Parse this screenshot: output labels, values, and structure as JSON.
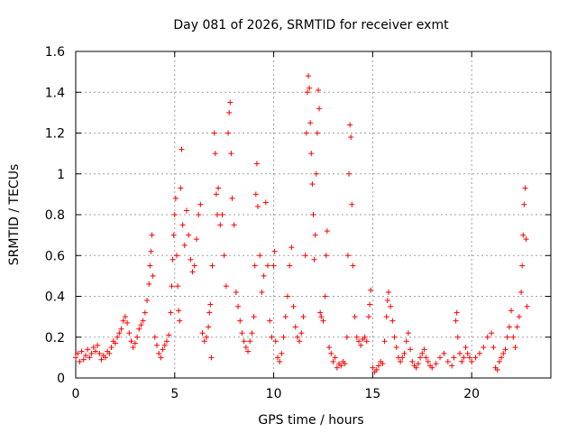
{
  "chart_data": {
    "type": "scatter",
    "title": "Day 081 of 2026, SRMTID for receiver exmt",
    "xlabel": "GPS time / hours",
    "ylabel": "SRMTID / TECUs",
    "xlim": [
      0,
      24
    ],
    "ylim": [
      0,
      1.6
    ],
    "xticks": [
      0,
      5,
      10,
      15,
      20
    ],
    "xtick_labels": [
      "0",
      "5",
      "10",
      "15",
      "20"
    ],
    "yticks": [
      0,
      0.2,
      0.4,
      0.6,
      0.8,
      1.0,
      1.2,
      1.4,
      1.6
    ],
    "ytick_labels": [
      "0",
      "0.2",
      "0.4",
      "0.6",
      "0.8",
      "1",
      "1.2",
      "1.4",
      "1.6"
    ],
    "grid": true,
    "marker": "+",
    "marker_color": "#ff0000",
    "series": [
      {
        "name": "SRMTID",
        "points": [
          [
            0.0,
            0.1
          ],
          [
            0.1,
            0.12
          ],
          [
            0.2,
            0.08
          ],
          [
            0.3,
            0.13
          ],
          [
            0.4,
            0.09
          ],
          [
            0.5,
            0.11
          ],
          [
            0.6,
            0.14
          ],
          [
            0.7,
            0.1
          ],
          [
            0.8,
            0.12
          ],
          [
            0.9,
            0.15
          ],
          [
            1.0,
            0.13
          ],
          [
            1.1,
            0.16
          ],
          [
            1.2,
            0.12
          ],
          [
            1.3,
            0.09
          ],
          [
            1.4,
            0.11
          ],
          [
            1.5,
            0.1
          ],
          [
            1.6,
            0.13
          ],
          [
            1.7,
            0.12
          ],
          [
            1.8,
            0.15
          ],
          [
            1.9,
            0.18
          ],
          [
            2.0,
            0.17
          ],
          [
            2.1,
            0.2
          ],
          [
            2.2,
            0.22
          ],
          [
            2.3,
            0.24
          ],
          [
            2.4,
            0.28
          ],
          [
            2.5,
            0.3
          ],
          [
            2.6,
            0.27
          ],
          [
            2.7,
            0.22
          ],
          [
            2.8,
            0.18
          ],
          [
            2.9,
            0.15
          ],
          [
            3.0,
            0.17
          ],
          [
            3.1,
            0.2
          ],
          [
            3.2,
            0.24
          ],
          [
            3.3,
            0.26
          ],
          [
            3.4,
            0.28
          ],
          [
            3.5,
            0.32
          ],
          [
            3.6,
            0.38
          ],
          [
            3.7,
            0.46
          ],
          [
            3.75,
            0.55
          ],
          [
            3.8,
            0.62
          ],
          [
            3.85,
            0.7
          ],
          [
            3.9,
            0.5
          ],
          [
            4.0,
            0.2
          ],
          [
            4.1,
            0.16
          ],
          [
            4.2,
            0.12
          ],
          [
            4.3,
            0.1
          ],
          [
            4.4,
            0.14
          ],
          [
            4.5,
            0.16
          ],
          [
            4.6,
            0.18
          ],
          [
            4.7,
            0.21
          ],
          [
            4.8,
            0.32
          ],
          [
            4.85,
            0.45
          ],
          [
            4.9,
            0.58
          ],
          [
            4.95,
            0.7
          ],
          [
            5.0,
            0.8
          ],
          [
            5.05,
            0.88
          ],
          [
            5.1,
            0.6
          ],
          [
            5.15,
            0.45
          ],
          [
            5.2,
            0.33
          ],
          [
            5.25,
            0.28
          ],
          [
            5.3,
            0.93
          ],
          [
            5.35,
            1.12
          ],
          [
            5.4,
            0.75
          ],
          [
            5.5,
            0.65
          ],
          [
            5.6,
            0.82
          ],
          [
            5.7,
            0.7
          ],
          [
            5.8,
            0.58
          ],
          [
            5.9,
            0.52
          ],
          [
            6.0,
            0.55
          ],
          [
            6.1,
            0.68
          ],
          [
            6.2,
            0.8
          ],
          [
            6.3,
            0.85
          ],
          [
            6.4,
            0.22
          ],
          [
            6.5,
            0.18
          ],
          [
            6.6,
            0.2
          ],
          [
            6.7,
            0.25
          ],
          [
            6.75,
            0.32
          ],
          [
            6.8,
            0.36
          ],
          [
            6.85,
            0.1
          ],
          [
            6.9,
            0.55
          ],
          [
            7.0,
            1.2
          ],
          [
            7.05,
            1.1
          ],
          [
            7.1,
            0.9
          ],
          [
            7.15,
            0.8
          ],
          [
            7.2,
            0.93
          ],
          [
            7.3,
            0.75
          ],
          [
            7.4,
            0.8
          ],
          [
            7.5,
            0.6
          ],
          [
            7.6,
            0.45
          ],
          [
            7.7,
            1.2
          ],
          [
            7.75,
            1.3
          ],
          [
            7.8,
            1.35
          ],
          [
            7.85,
            1.1
          ],
          [
            7.9,
            0.88
          ],
          [
            8.0,
            0.75
          ],
          [
            8.1,
            0.42
          ],
          [
            8.2,
            0.35
          ],
          [
            8.3,
            0.28
          ],
          [
            8.4,
            0.22
          ],
          [
            8.5,
            0.18
          ],
          [
            8.6,
            0.15
          ],
          [
            8.7,
            0.13
          ],
          [
            8.8,
            0.18
          ],
          [
            8.9,
            0.22
          ],
          [
            9.0,
            0.3
          ],
          [
            9.05,
            0.55
          ],
          [
            9.1,
            0.9
          ],
          [
            9.15,
            1.05
          ],
          [
            9.2,
            0.84
          ],
          [
            9.3,
            0.6
          ],
          [
            9.4,
            0.42
          ],
          [
            9.5,
            0.5
          ],
          [
            9.6,
            0.86
          ],
          [
            9.7,
            0.55
          ],
          [
            9.8,
            0.28
          ],
          [
            9.9,
            0.2
          ],
          [
            10.0,
            0.55
          ],
          [
            10.05,
            0.62
          ],
          [
            10.1,
            0.18
          ],
          [
            10.2,
            0.1
          ],
          [
            10.3,
            0.08
          ],
          [
            10.4,
            0.12
          ],
          [
            10.5,
            0.2
          ],
          [
            10.6,
            0.3
          ],
          [
            10.7,
            0.4
          ],
          [
            10.8,
            0.55
          ],
          [
            10.9,
            0.64
          ],
          [
            11.0,
            0.35
          ],
          [
            11.1,
            0.25
          ],
          [
            11.2,
            0.2
          ],
          [
            11.3,
            0.18
          ],
          [
            11.4,
            0.22
          ],
          [
            11.5,
            0.3
          ],
          [
            11.6,
            0.6
          ],
          [
            11.65,
            1.2
          ],
          [
            11.7,
            1.4
          ],
          [
            11.75,
            1.48
          ],
          [
            11.8,
            1.42
          ],
          [
            11.85,
            1.25
          ],
          [
            11.9,
            1.1
          ],
          [
            11.95,
            0.95
          ],
          [
            12.0,
            0.8
          ],
          [
            12.05,
            0.58
          ],
          [
            12.1,
            0.7
          ],
          [
            12.15,
            1.0
          ],
          [
            12.2,
            1.2
          ],
          [
            12.25,
            1.41
          ],
          [
            12.3,
            1.32
          ],
          [
            12.35,
            0.32
          ],
          [
            12.4,
            0.3
          ],
          [
            12.5,
            0.28
          ],
          [
            12.6,
            0.4
          ],
          [
            12.65,
            0.6
          ],
          [
            12.7,
            0.72
          ],
          [
            12.8,
            0.15
          ],
          [
            12.9,
            0.12
          ],
          [
            13.0,
            0.08
          ],
          [
            13.1,
            0.1
          ],
          [
            13.2,
            0.05
          ],
          [
            13.3,
            0.07
          ],
          [
            13.4,
            0.06
          ],
          [
            13.5,
            0.08
          ],
          [
            13.6,
            0.07
          ],
          [
            13.7,
            0.2
          ],
          [
            13.75,
            0.6
          ],
          [
            13.8,
            1.0
          ],
          [
            13.85,
            1.24
          ],
          [
            13.9,
            1.18
          ],
          [
            13.95,
            0.85
          ],
          [
            14.0,
            0.55
          ],
          [
            14.1,
            0.3
          ],
          [
            14.2,
            0.2
          ],
          [
            14.3,
            0.18
          ],
          [
            14.4,
            0.16
          ],
          [
            14.5,
            0.19
          ],
          [
            14.6,
            0.2
          ],
          [
            14.7,
            0.18
          ],
          [
            14.8,
            0.3
          ],
          [
            14.85,
            0.36
          ],
          [
            14.9,
            0.43
          ],
          [
            15.0,
            0.05
          ],
          [
            15.1,
            0.03
          ],
          [
            15.2,
            0.04
          ],
          [
            15.3,
            0.06
          ],
          [
            15.4,
            0.08
          ],
          [
            15.5,
            0.07
          ],
          [
            15.6,
            0.18
          ],
          [
            15.7,
            0.3
          ],
          [
            15.75,
            0.38
          ],
          [
            15.8,
            0.42
          ],
          [
            15.9,
            0.35
          ],
          [
            16.0,
            0.28
          ],
          [
            16.1,
            0.2
          ],
          [
            16.2,
            0.15
          ],
          [
            16.3,
            0.1
          ],
          [
            16.4,
            0.08
          ],
          [
            16.5,
            0.1
          ],
          [
            16.6,
            0.12
          ],
          [
            16.7,
            0.18
          ],
          [
            16.8,
            0.22
          ],
          [
            16.9,
            0.14
          ],
          [
            17.0,
            0.08
          ],
          [
            17.1,
            0.06
          ],
          [
            17.2,
            0.05
          ],
          [
            17.3,
            0.07
          ],
          [
            17.4,
            0.1
          ],
          [
            17.5,
            0.12
          ],
          [
            17.6,
            0.14
          ],
          [
            17.7,
            0.1
          ],
          [
            17.8,
            0.08
          ],
          [
            17.9,
            0.06
          ],
          [
            18.0,
            0.05
          ],
          [
            18.2,
            0.07
          ],
          [
            18.4,
            0.1
          ],
          [
            18.6,
            0.12
          ],
          [
            18.8,
            0.08
          ],
          [
            19.0,
            0.06
          ],
          [
            19.1,
            0.1
          ],
          [
            19.2,
            0.28
          ],
          [
            19.25,
            0.32
          ],
          [
            19.3,
            0.2
          ],
          [
            19.4,
            0.12
          ],
          [
            19.5,
            0.08
          ],
          [
            19.6,
            0.1
          ],
          [
            19.7,
            0.15
          ],
          [
            19.8,
            0.12
          ],
          [
            19.9,
            0.1
          ],
          [
            20.0,
            0.08
          ],
          [
            20.2,
            0.1
          ],
          [
            20.4,
            0.12
          ],
          [
            20.6,
            0.15
          ],
          [
            20.8,
            0.2
          ],
          [
            21.0,
            0.22
          ],
          [
            21.1,
            0.15
          ],
          [
            21.2,
            0.05
          ],
          [
            21.3,
            0.04
          ],
          [
            21.4,
            0.08
          ],
          [
            21.5,
            0.1
          ],
          [
            21.6,
            0.12
          ],
          [
            21.7,
            0.14
          ],
          [
            21.8,
            0.2
          ],
          [
            21.9,
            0.25
          ],
          [
            22.0,
            0.33
          ],
          [
            22.1,
            0.2
          ],
          [
            22.2,
            0.15
          ],
          [
            22.3,
            0.25
          ],
          [
            22.4,
            0.3
          ],
          [
            22.5,
            0.42
          ],
          [
            22.55,
            0.55
          ],
          [
            22.6,
            0.7
          ],
          [
            22.65,
            0.85
          ],
          [
            22.7,
            0.93
          ],
          [
            22.75,
            0.68
          ],
          [
            22.8,
            0.35
          ]
        ]
      }
    ]
  }
}
